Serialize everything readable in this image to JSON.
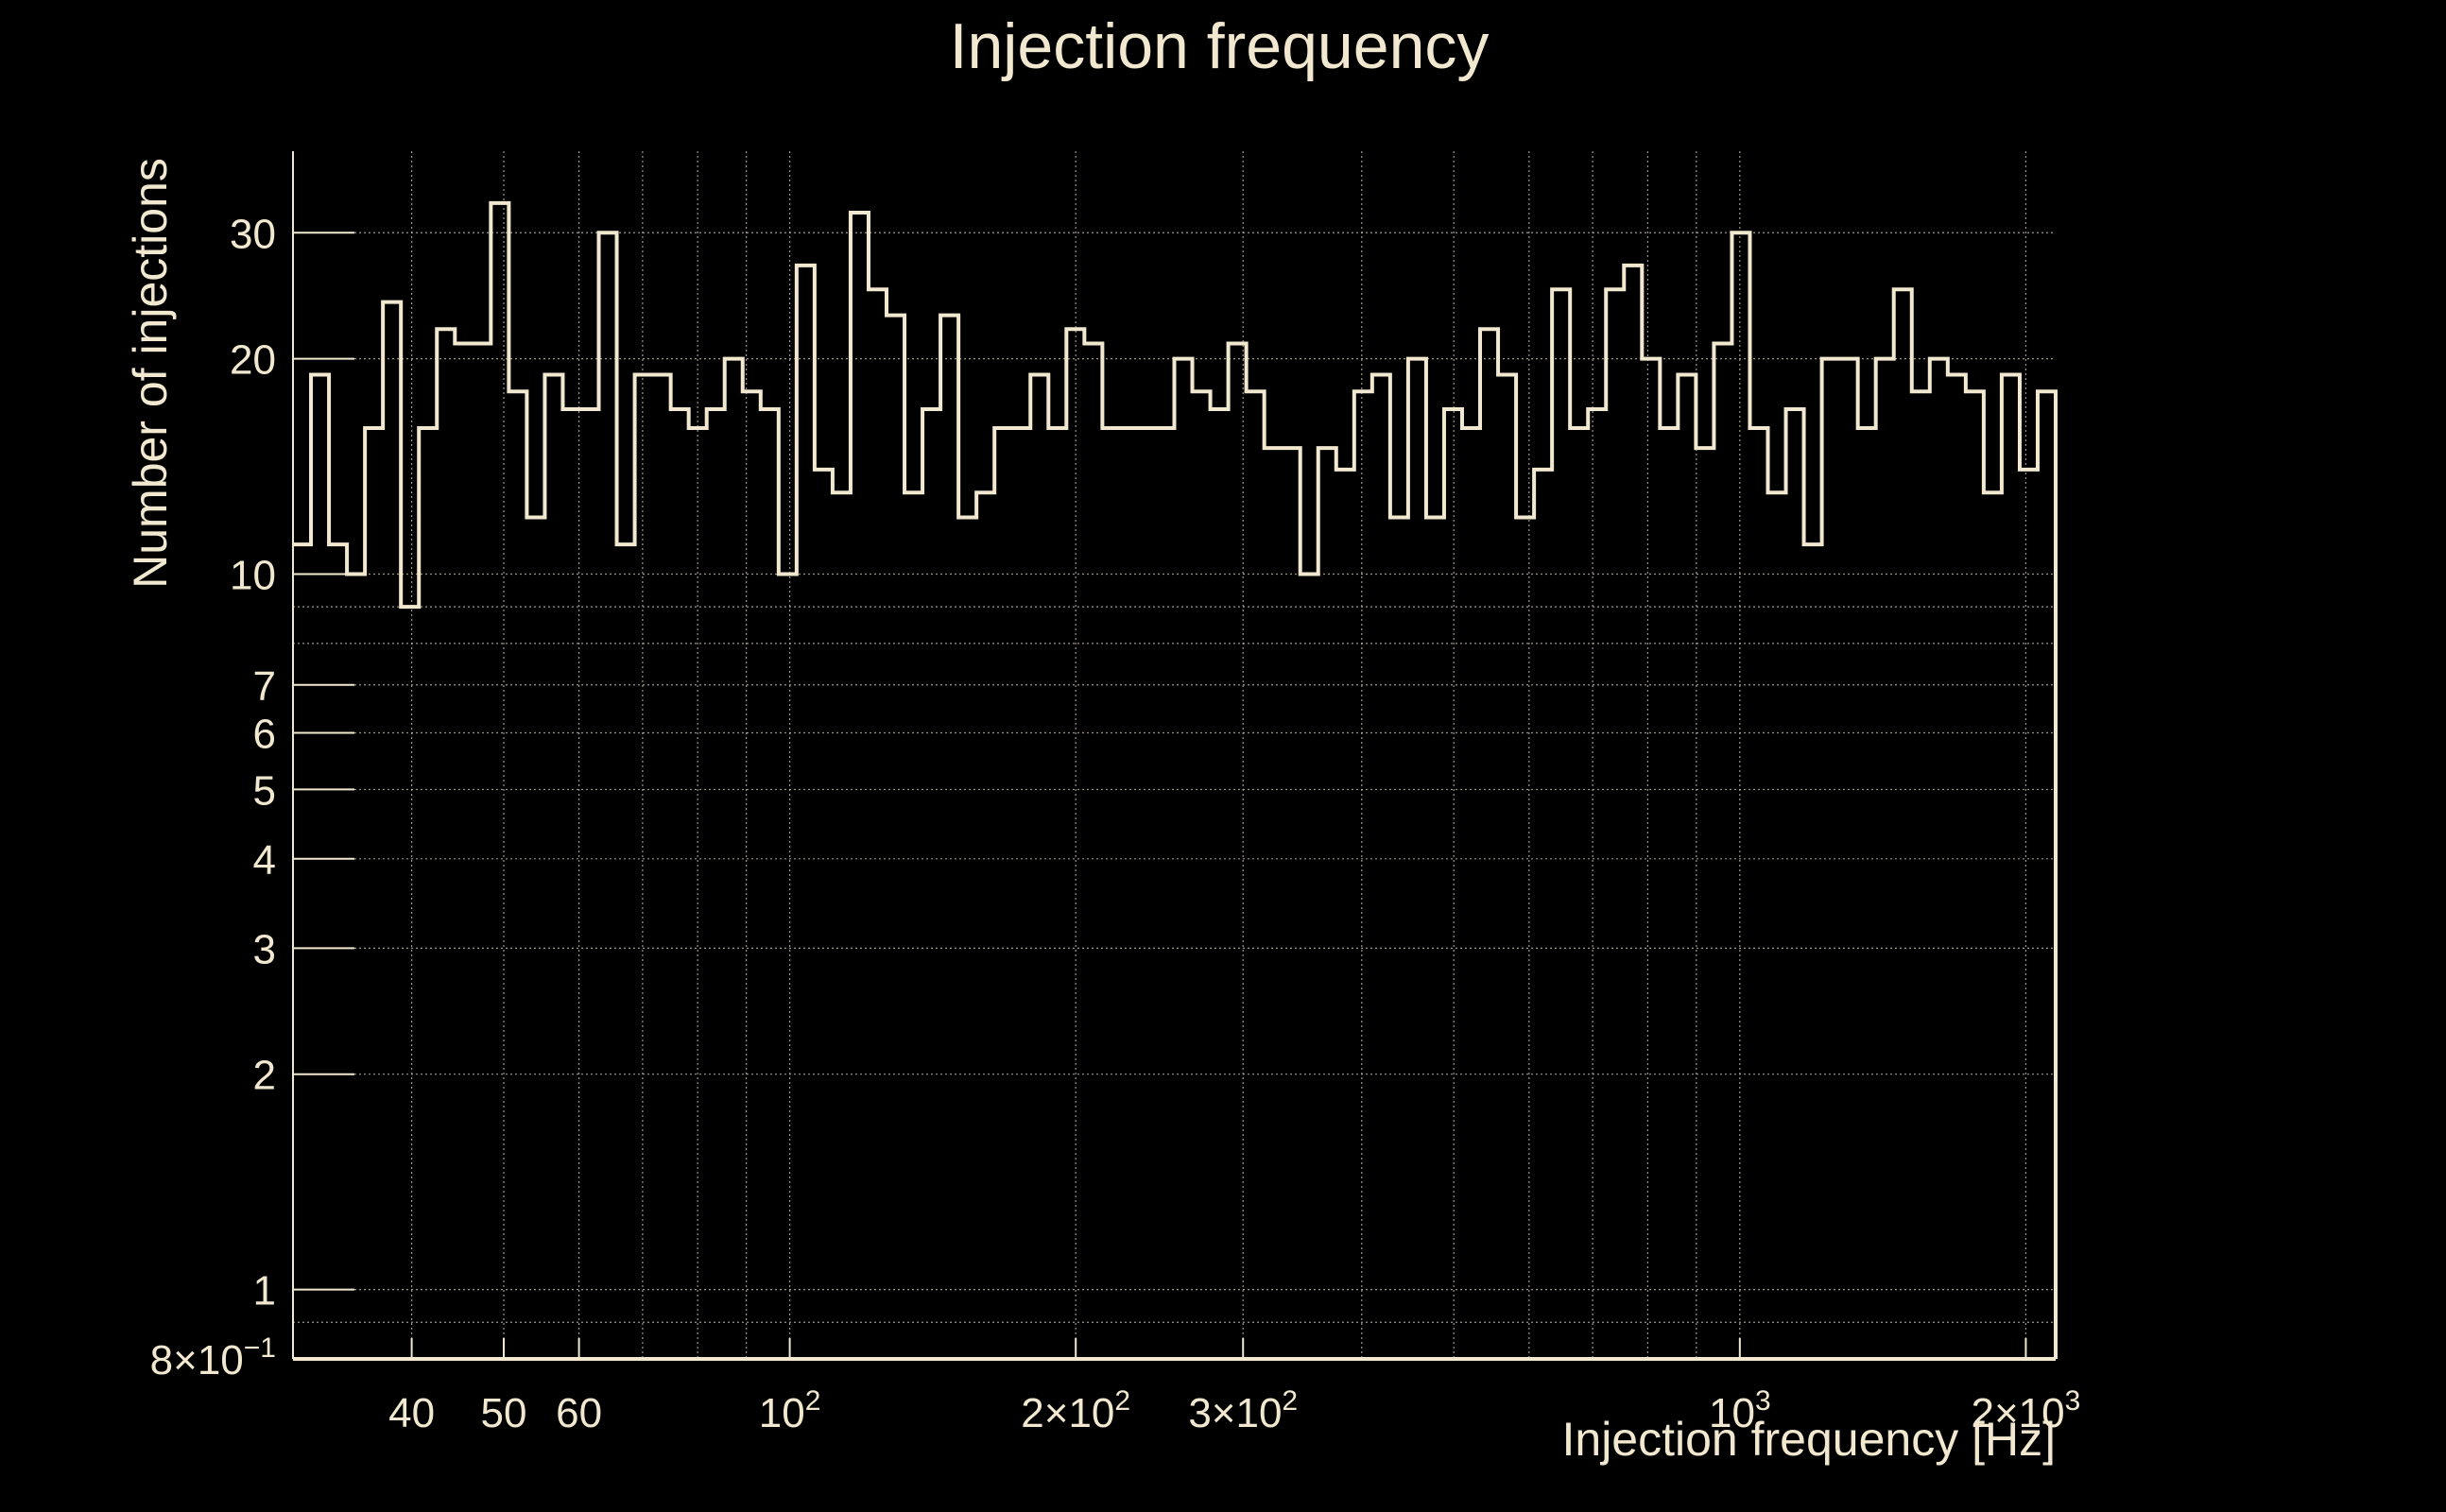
{
  "chart_data": {
    "type": "histogram",
    "title": "Injection frequency",
    "xlabel": "Injection frequency [Hz]",
    "ylabel": "Number of injections",
    "x_scale": "log",
    "y_scale": "log",
    "xlim": [
      30,
      2150
    ],
    "ylim": [
      0.8,
      39
    ],
    "grid": true,
    "color": "#f2e8cf",
    "background": "#000000",
    "x_ticks": [
      {
        "value": 40,
        "label": "40"
      },
      {
        "value": 50,
        "label": "50"
      },
      {
        "value": 60,
        "label": "60"
      },
      {
        "value": 100,
        "base": "10",
        "exp": "2"
      },
      {
        "value": 200,
        "base": "2×10",
        "exp": "2"
      },
      {
        "value": 300,
        "base": "3×10",
        "exp": "2"
      },
      {
        "value": 1000,
        "base": "10",
        "exp": "3"
      },
      {
        "value": 2000,
        "base": "2×10",
        "exp": "3"
      }
    ],
    "y_ticks": [
      {
        "value": 0.8,
        "base": "8×10",
        "exp": "−1"
      },
      {
        "value": 1,
        "label": "1"
      },
      {
        "value": 2,
        "label": "2"
      },
      {
        "value": 3,
        "label": "3"
      },
      {
        "value": 4,
        "label": "4"
      },
      {
        "value": 5,
        "label": "5"
      },
      {
        "value": 6,
        "label": "6"
      },
      {
        "value": 7,
        "label": "7"
      },
      {
        "value": 10,
        "label": "10"
      },
      {
        "value": 20,
        "label": "20"
      },
      {
        "value": 30,
        "label": "30"
      }
    ],
    "x_grid_values": [
      40,
      50,
      60,
      70,
      80,
      90,
      100,
      200,
      300,
      400,
      500,
      600,
      700,
      800,
      900,
      1000,
      2000
    ],
    "y_grid_values": [
      0.9,
      1,
      2,
      3,
      4,
      5,
      6,
      7,
      8,
      9,
      10,
      20,
      30
    ],
    "counts": [
      11,
      19,
      11,
      10,
      16,
      24,
      9,
      16,
      22,
      21,
      21,
      33,
      18,
      12,
      19,
      17,
      17,
      30,
      11,
      19,
      19,
      17,
      16,
      17,
      20,
      18,
      17,
      10,
      27,
      14,
      13,
      32,
      25,
      23,
      13,
      17,
      23,
      12,
      13,
      16,
      16,
      19,
      16,
      22,
      21,
      16,
      16,
      16,
      16,
      20,
      18,
      17,
      21,
      18,
      15,
      15,
      10,
      15,
      14,
      18,
      19,
      12,
      20,
      12,
      17,
      16,
      22,
      19,
      12,
      14,
      25,
      16,
      17,
      25,
      27,
      20,
      16,
      19,
      15,
      21,
      30,
      16,
      13,
      17,
      11,
      20,
      20,
      16,
      20,
      25,
      18,
      20,
      19,
      18,
      13,
      19,
      14,
      18
    ]
  }
}
